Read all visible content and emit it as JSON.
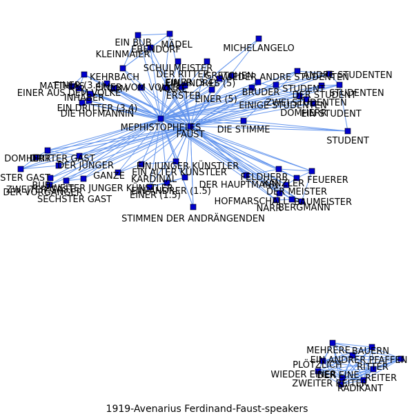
{
  "caption": "1919-Avenarius  Ferdinand-Faust-speakers",
  "colors": {
    "node": "#0000cc",
    "edge": "#6495ed",
    "label": "#000000"
  },
  "nodes": [
    {
      "id": "faust",
      "label": "FAUST"
    },
    {
      "id": "mephistopheles",
      "label": "MEPHISTOPHELES"
    },
    {
      "id": "die-stimme",
      "label": "DIE STIMME"
    },
    {
      "id": "student",
      "label": "STUDENT"
    },
    {
      "id": "michelangelo",
      "label": "MICHELANGELO"
    },
    {
      "id": "stimmen",
      "label": "STIMMEN DER ANDRÄNGENDEN"
    },
    {
      "id": "ein-bub",
      "label": "EIN BUB"
    },
    {
      "id": "mg-madel",
      "label": "MÄDEL"
    },
    {
      "id": "kleinmaier",
      "label": "KLEINMAIER"
    },
    {
      "id": "ebendorf",
      "label": "EBENDORF"
    },
    {
      "id": "schulmeister",
      "label": "SCHULMEISTER"
    },
    {
      "id": "der-ritter",
      "label": "DER RITTER"
    },
    {
      "id": "gretchen",
      "label": "GRETCHEN"
    },
    {
      "id": "ein-andres",
      "label": "EIN ANDRES (5)"
    },
    {
      "id": "kehrbach",
      "label": "KEHRBACH"
    },
    {
      "id": "einer-3-4",
      "label": "EINER (3.4)"
    },
    {
      "id": "einer-aus",
      "label": "EINER AUS DEM VOLKE"
    },
    {
      "id": "einer-vom-volke",
      "label": "EINER VOM VOLKE"
    },
    {
      "id": "mg-vom",
      "label": "VOM"
    },
    {
      "id": "mg-volke",
      "label": "VOLKE"
    },
    {
      "id": "erster",
      "label": "ERSTER"
    },
    {
      "id": "bruder",
      "label": "BRUDER"
    },
    {
      "id": "einer-5",
      "label": "EINER (5)"
    },
    {
      "id": "mg-inhaber",
      "label": "INHABER"
    },
    {
      "id": "matthias",
      "label": "MATTHIAS"
    },
    {
      "id": "die-hofmannin",
      "label": "DIE HOFMANNIN"
    },
    {
      "id": "ein-dritter",
      "label": "EIN DRITTER (3.4)"
    },
    {
      "id": "einer-tr",
      "label": "EINER (3.4)"
    },
    {
      "id": "wieder-andre-studenten",
      "label": "WIEDER ANDRE STUDENTEN"
    },
    {
      "id": "andre-studenten",
      "label": "ANDRE STUDENTEN"
    },
    {
      "id": "ein-student",
      "label": "EIN STUDENT"
    },
    {
      "id": "einige-studenten",
      "label": "EINIGE STUDENTEN"
    },
    {
      "id": "zwei-studenten",
      "label": "ZWEI STUDENTEN"
    },
    {
      "id": "der-student",
      "label": "DER STUDENT"
    },
    {
      "id": "domherr",
      "label": "DOMHERR"
    },
    {
      "id": "mg-studenten",
      "label": "STUDENTEN"
    },
    {
      "id": "mg-student-r",
      "label": "STUDENT"
    },
    {
      "id": "dritter-gast",
      "label": "DRITTER GAST"
    },
    {
      "id": "domherr-l",
      "label": "DOMHERR"
    },
    {
      "id": "der-vorganger",
      "label": "DER VORGÄNGER"
    },
    {
      "id": "sechster-gast",
      "label": "SECHSTER GAST"
    },
    {
      "id": "zweiter-gast",
      "label": "ZWEITER GAST"
    },
    {
      "id": "bub",
      "label": "BUB"
    },
    {
      "id": "ganze",
      "label": "GANZE"
    },
    {
      "id": "erster-gast",
      "label": "ERSTER GAST"
    },
    {
      "id": "der-junger",
      "label": "DER JÜNGER"
    },
    {
      "id": "ein-junger-kunstler",
      "label": "EIN JUNGER KÜNSTLER"
    },
    {
      "id": "ein-alter-kunstler",
      "label": "EIN ALTER KÜNSTLER"
    },
    {
      "id": "zweiter-junger",
      "label": "ZWEITER JUNGER KÜNSTLER"
    },
    {
      "id": "kardinal",
      "label": "KARDINAL"
    },
    {
      "id": "einer-1-5",
      "label": "EINER (1.5)"
    },
    {
      "id": "ein-andrer",
      "label": "EIN ANDRER (1.5)"
    },
    {
      "id": "der-hauptmann",
      "label": "DER HAUPTMANN"
    },
    {
      "id": "felder",
      "label": "FELDHERR"
    },
    {
      "id": "feuerer",
      "label": "FEUERER"
    },
    {
      "id": "der-meister",
      "label": "DER MEISTER"
    },
    {
      "id": "kanzler",
      "label": "KANZLER"
    },
    {
      "id": "hofmarschall",
      "label": "HOFMARSCHALL"
    },
    {
      "id": "bergmann",
      "label": "BERGMANN"
    },
    {
      "id": "narr",
      "label": "NARR"
    },
    {
      "id": "baumeister",
      "label": "BAUMEISTER"
    },
    {
      "id": "b-bauern",
      "label": "BAUERN"
    },
    {
      "id": "b-pfaffen",
      "label": "EIN ANDRER PFAFFEN"
    },
    {
      "id": "b-ritter",
      "label": "RITTER"
    },
    {
      "id": "b-reiter",
      "label": "REITER"
    },
    {
      "id": "b-plotzlich",
      "label": "PLÖTZLICH"
    },
    {
      "id": "b-wieder",
      "label": "WIEDER EINER"
    },
    {
      "id": "b-der-eine",
      "label": "DER EINE"
    },
    {
      "id": "b-zweiter",
      "label": "ZWEITER REITER"
    },
    {
      "id": "b-radikant",
      "label": "RADIKANT"
    },
    {
      "id": "b-mehrere",
      "label": "MEHRERE"
    }
  ]
}
